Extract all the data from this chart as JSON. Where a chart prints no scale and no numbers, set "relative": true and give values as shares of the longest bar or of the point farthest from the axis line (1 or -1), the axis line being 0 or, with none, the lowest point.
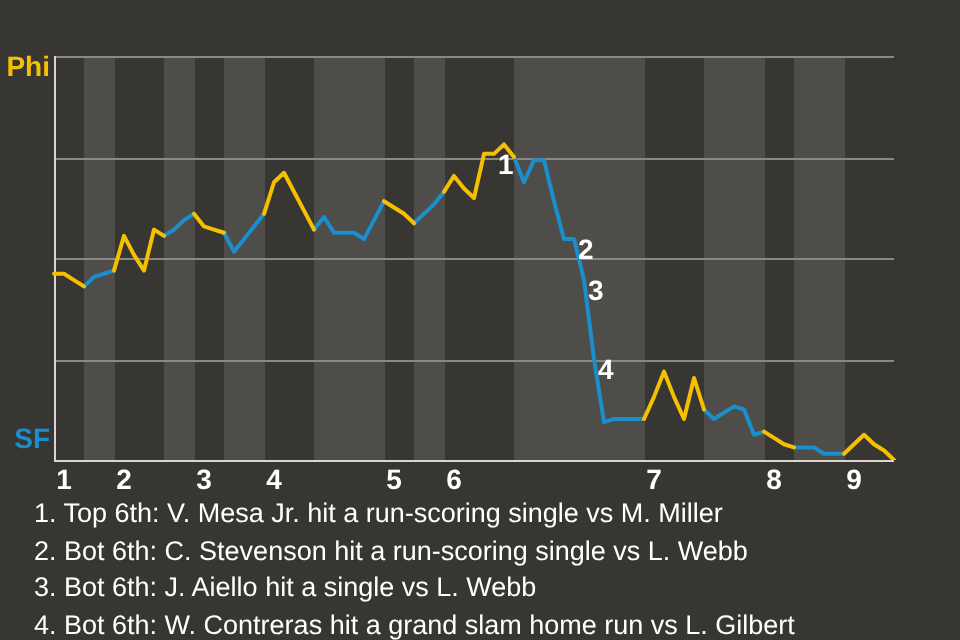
{
  "chart_data": {
    "type": "line",
    "relative": true,
    "categories": [
      null,
      "1",
      null,
      null,
      null,
      null,
      null,
      "2",
      null,
      null,
      null,
      null,
      null,
      null,
      null,
      "3",
      null,
      null,
      null,
      null,
      null,
      null,
      "4",
      null,
      null,
      null,
      null,
      null,
      null,
      null,
      null,
      null,
      null,
      null,
      "5",
      null,
      null,
      null,
      null,
      null,
      "6",
      null,
      null,
      null,
      null,
      null,
      null,
      null,
      null,
      null,
      null,
      null,
      null,
      null,
      null,
      null,
      null,
      null,
      null,
      null,
      "7",
      null,
      null,
      null,
      null,
      null,
      null,
      null,
      null,
      null,
      null,
      null,
      "8",
      null,
      null,
      null,
      null,
      null,
      null,
      null,
      "9",
      null,
      null,
      null,
      null
    ],
    "grid": "y",
    "legend": false,
    "marker": "none",
    "line_style": "solid",
    "series": [
      {
        "name": "Phi",
        "color": "#f5c000",
        "values": [
          0.59,
          0.59,
          0.57,
          0.55,
          null,
          null,
          0.6,
          0.71,
          0.65,
          0.6,
          0.73,
          0.71,
          null,
          null,
          0.78,
          0.74,
          0.73,
          0.72,
          null,
          null,
          null,
          0.78,
          0.88,
          0.91,
          0.85,
          0.79,
          0.73,
          null,
          null,
          null,
          null,
          null,
          null,
          0.82,
          0.8,
          0.78,
          0.75,
          null,
          null,
          0.85,
          0.9,
          0.86,
          0.83,
          0.97,
          0.97,
          1,
          0.96,
          null,
          null,
          null,
          null,
          null,
          null,
          null,
          null,
          null,
          null,
          null,
          null,
          0.13,
          0.2,
          0.28,
          0.2,
          0.13,
          0.26,
          0.16,
          null,
          null,
          null,
          null,
          null,
          0.09,
          0.07,
          0.05,
          0.04,
          null,
          null,
          null,
          null,
          0.02,
          0.05,
          0.08,
          0.05,
          0.03,
          0
        ]
      },
      {
        "name": "SF",
        "color": "#1a8fcc",
        "values": [
          null,
          null,
          null,
          0.55,
          0.58,
          0.59,
          0.6,
          null,
          null,
          null,
          null,
          0.71,
          0.73,
          0.76,
          0.78,
          null,
          null,
          0.72,
          0.66,
          0.7,
          0.74,
          0.78,
          null,
          null,
          null,
          null,
          0.73,
          0.77,
          0.72,
          0.72,
          0.72,
          0.7,
          0.76,
          0.82,
          null,
          null,
          0.75,
          0.78,
          0.81,
          0.85,
          null,
          null,
          null,
          null,
          null,
          null,
          0.96,
          0.88,
          0.95,
          0.95,
          0.82,
          0.7,
          0.7,
          0.57,
          0.32,
          0.12,
          0.13,
          0.13,
          0.13,
          0.13,
          null,
          null,
          null,
          null,
          null,
          0.16,
          0.13,
          0.15,
          0.17,
          0.16,
          0.08,
          0.09,
          null,
          null,
          0.04,
          0.04,
          0.04,
          0.02,
          0.02,
          0.02,
          null,
          null,
          null,
          null,
          null
        ]
      }
    ],
    "annotations": [
      {
        "text": "1",
        "y": 0.97
      },
      {
        "text": "2",
        "y": 0.7
      },
      {
        "text": "3",
        "y": 0.57
      },
      {
        "text": "4",
        "y": 0.32
      },
      "1. Top 6th: V. Mesa Jr. hit a run-scoring single vs M. Miller",
      "2. Bot 6th: C. Stevenson hit a run-scoring single vs L. Webb",
      "3. Bot 6th: J. Aiello hit a single vs L. Webb",
      "4. Bot 6th: W. Contreras hit a grand slam home run vs L. Gilbert"
    ]
  }
}
